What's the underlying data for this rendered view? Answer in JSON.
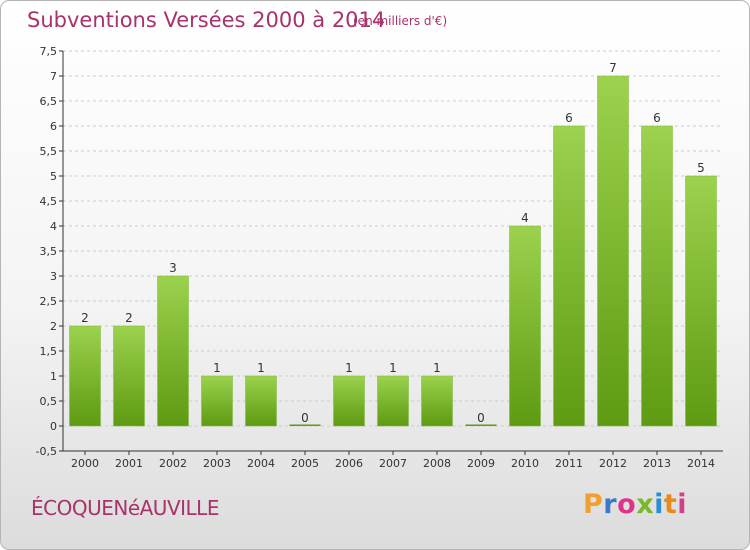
{
  "header": {
    "title": "Subventions Versées 2000 à 2014",
    "subtitle": "(en milliers d'€)"
  },
  "footer": {
    "commune": "ÉCOQUENéAUVILLE",
    "logo_text": "Proxiti",
    "logo_colors": [
      "#f0a030",
      "#3a78c8",
      "#e0338a",
      "#78b82a",
      "#2a8fd0",
      "#e88a1a",
      "#d0408a"
    ]
  },
  "colors": {
    "text_accent": "#a8326a",
    "bar_light": "#9cd24e",
    "bar_dark": "#5e9a12",
    "axis": "#333333",
    "grid": "#cccccc"
  },
  "chart_data": {
    "type": "bar",
    "categories": [
      "2000",
      "2001",
      "2002",
      "2003",
      "2004",
      "2005",
      "2006",
      "2007",
      "2008",
      "2009",
      "2010",
      "2011",
      "2012",
      "2013",
      "2014"
    ],
    "values": [
      2,
      2,
      3,
      1,
      1,
      0,
      1,
      1,
      1,
      0,
      4,
      6,
      7,
      6,
      5
    ],
    "data_labels": [
      "2",
      "2",
      "3",
      "1",
      "1",
      "0",
      "1",
      "1",
      "1",
      "0",
      "4",
      "6",
      "7",
      "6",
      "5"
    ],
    "title": "Subventions Versées 2000 à 2014",
    "ylim": [
      -0.5,
      7.5
    ],
    "yticks": [
      -0.5,
      0,
      0.5,
      1,
      1.5,
      2,
      2.5,
      3,
      3.5,
      4,
      4.5,
      5,
      5.5,
      6,
      6.5,
      7,
      7.5
    ],
    "ytick_labels": [
      "-0,5",
      "0",
      "0,5",
      "1",
      "1,5",
      "2",
      "2,5",
      "3",
      "3,5",
      "4",
      "4,5",
      "5",
      "5,5",
      "6",
      "6,5",
      "7",
      "7,5"
    ],
    "grid": "dashed horizontal",
    "legend": "none"
  }
}
